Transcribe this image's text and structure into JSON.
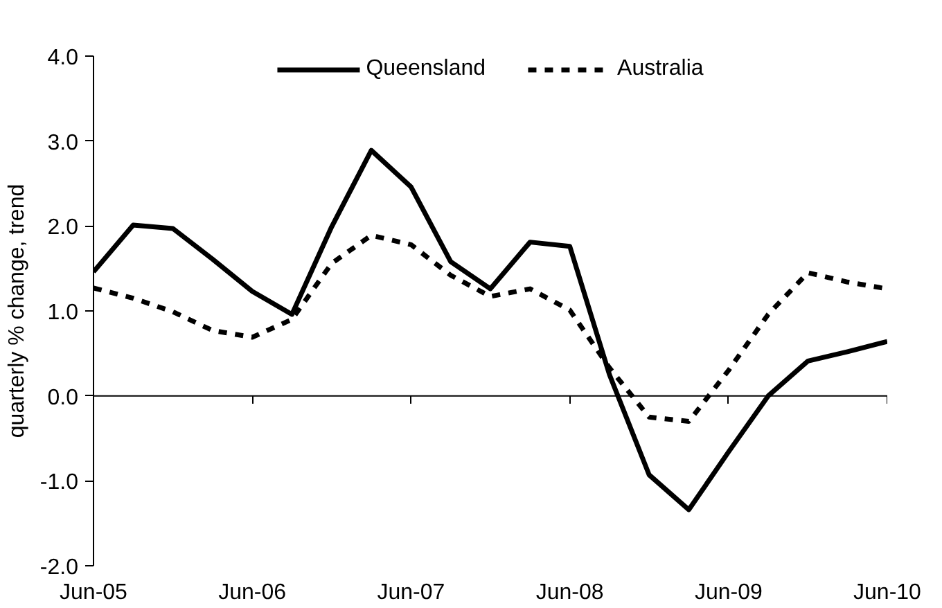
{
  "chart_data": {
    "type": "line",
    "ylabel": "quarterly % change, trend",
    "categories": [
      "Jun-05",
      null,
      null,
      null,
      "Jun-06",
      null,
      null,
      null,
      "Jun-07",
      null,
      null,
      null,
      "Jun-08",
      null,
      null,
      null,
      "Jun-09",
      null,
      null,
      null,
      "Jun-10"
    ],
    "ylim": [
      -2.0,
      4.0
    ],
    "yticks": [
      {
        "value": -2,
        "label": "-2.0"
      },
      {
        "value": -1,
        "label": "-1.0"
      },
      {
        "value": 0,
        "label": "0.0"
      },
      {
        "value": 1,
        "label": "1.0"
      },
      {
        "value": 2,
        "label": "2.0"
      },
      {
        "value": 3,
        "label": "3.0"
      },
      {
        "value": 4,
        "label": "4.0"
      }
    ],
    "grid": false,
    "ref_lines": [
      {
        "axis": "y",
        "value": 0,
        "color": "#000000",
        "line_style": "solid"
      }
    ],
    "legend": "top",
    "marker": "none",
    "series": [
      {
        "name": "Queensland",
        "color": "#000000",
        "line_style": "solid",
        "values": [
          1.46,
          2.01,
          1.97,
          1.61,
          1.23,
          0.96,
          1.99,
          2.89,
          2.46,
          1.58,
          1.26,
          1.81,
          1.76,
          0.25,
          -0.93,
          -1.34,
          -0.66,
          0.0,
          0.41,
          0.52,
          0.64
        ]
      },
      {
        "name": "Australia",
        "color": "#000000",
        "line_style": "dashed",
        "values": [
          1.27,
          1.15,
          0.99,
          0.77,
          0.69,
          0.9,
          1.56,
          1.89,
          1.78,
          1.42,
          1.17,
          1.26,
          1.01,
          0.33,
          -0.25,
          -0.3,
          0.3,
          0.96,
          1.45,
          1.34,
          1.26
        ]
      }
    ]
  }
}
